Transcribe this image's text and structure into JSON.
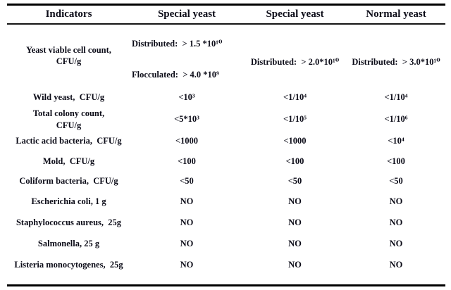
{
  "table": {
    "headers": [
      "Indicators",
      "Special yeast",
      "Special yeast",
      "Normal yeast"
    ],
    "rows": [
      {
        "indicator": "Yeast viable cell count,\nCFU/g",
        "special_yeast_1_distributed": "Distributed:  > 1.5 *10¹⁰",
        "special_yeast_1_flocculated": "Flocculated:  > 4.0 *10⁹",
        "special_yeast_2": "Distributed:  > 2.0*10¹⁰",
        "normal_yeast": "Distributed:  > 3.0*10¹⁰"
      },
      {
        "indicator": "Wild yeast,  CFU/g",
        "special_yeast_1": "<10³",
        "special_yeast_2": "<1/10⁴",
        "normal_yeast": "<1/10⁴"
      },
      {
        "indicator": "Total colony count,\nCFU/g",
        "special_yeast_1": "<5*10³",
        "special_yeast_2": "<1/10⁵",
        "normal_yeast": "<1/10⁶"
      },
      {
        "indicator": "Lactic acid bacteria,  CFU/g",
        "special_yeast_1": "<1000",
        "special_yeast_2": "<1000",
        "normal_yeast": "<10⁴"
      },
      {
        "indicator": "Mold,  CFU/g",
        "special_yeast_1": "<100",
        "special_yeast_2": "<100",
        "normal_yeast": "<100"
      },
      {
        "indicator": "Coliform bacteria,  CFU/g",
        "special_yeast_1": "<50",
        "special_yeast_2": "<50",
        "normal_yeast": "<50"
      },
      {
        "indicator": "Escherichia coli, 1 g",
        "special_yeast_1": "NO",
        "special_yeast_2": "NO",
        "normal_yeast": "NO"
      },
      {
        "indicator": "Staphylococcus aureus,  25g",
        "special_yeast_1": "NO",
        "special_yeast_2": "NO",
        "normal_yeast": "NO"
      },
      {
        "indicator": "Salmonella, 25 g",
        "special_yeast_1": "NO",
        "special_yeast_2": "NO",
        "normal_yeast": "NO"
      },
      {
        "indicator": "Listeria monocytogenes,  25g",
        "special_yeast_1": "NO",
        "special_yeast_2": "NO",
        "normal_yeast": "NO"
      }
    ],
    "colors": {
      "text": "#0c0c18",
      "border": "#000000",
      "background": "#ffffff"
    }
  }
}
